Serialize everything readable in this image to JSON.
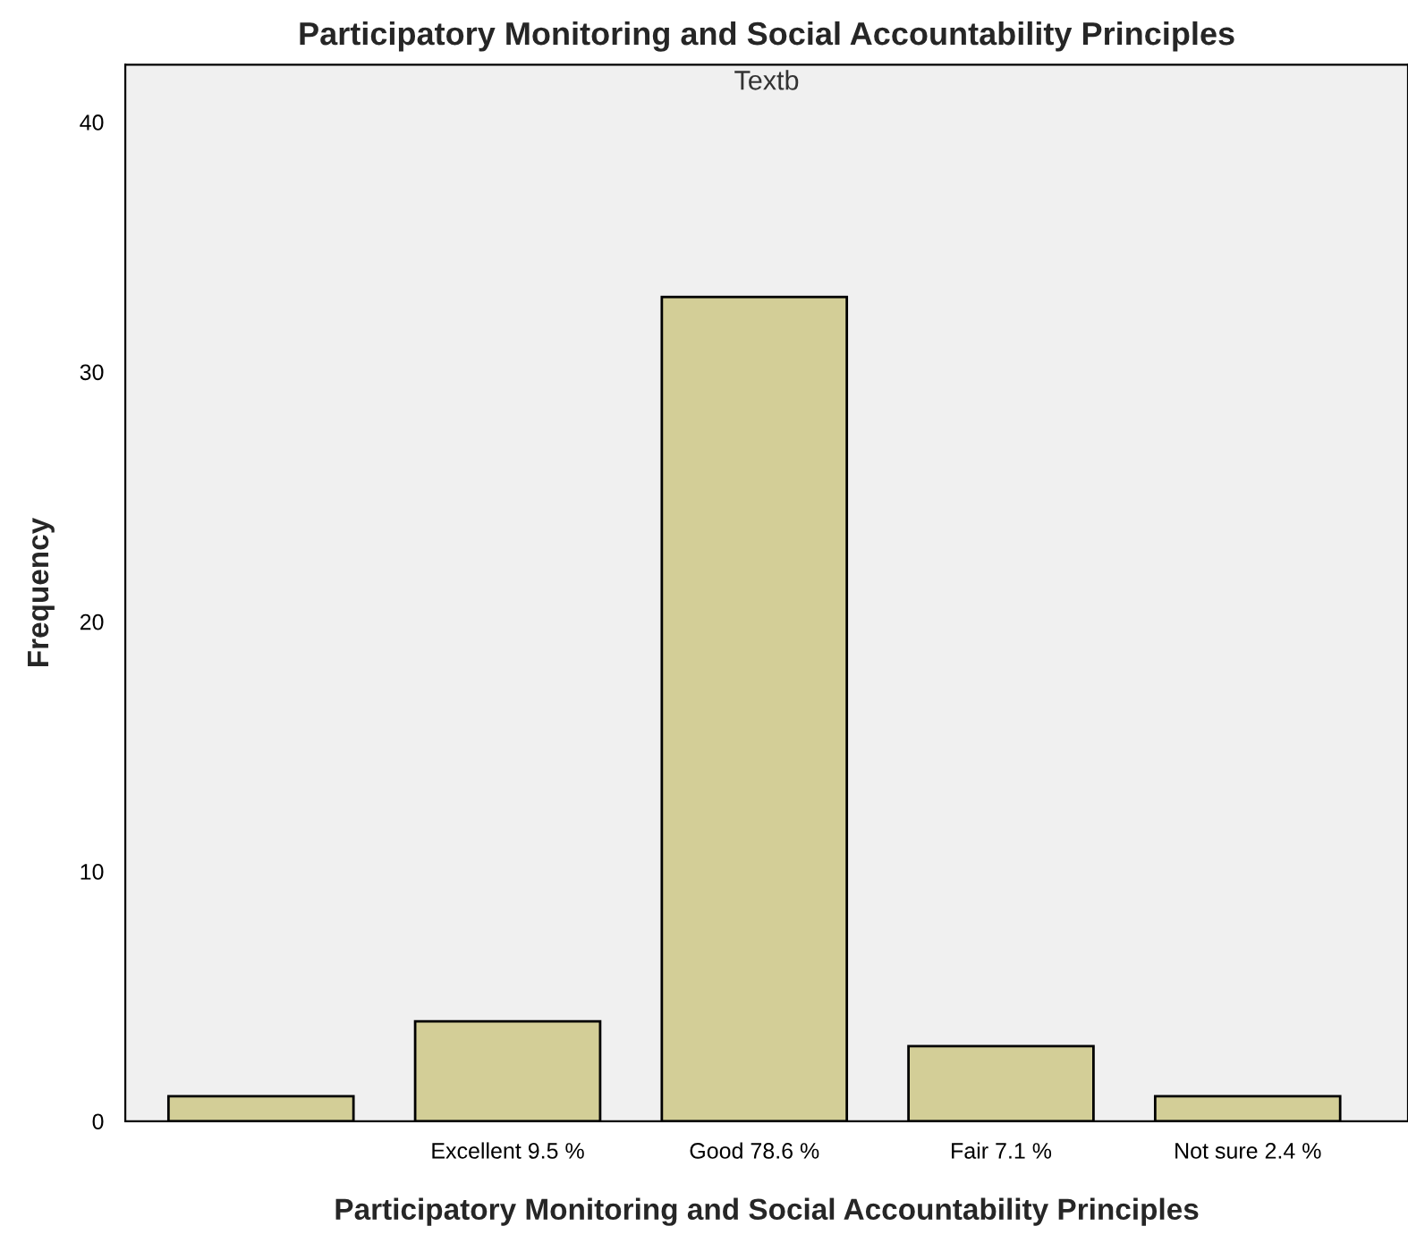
{
  "chart_data": {
    "type": "bar",
    "title": "Participatory Monitoring and Social Accountability Principles",
    "xlabel": "Participatory Monitoring and Social Accountability Principles",
    "ylabel": "Frequency",
    "annotations": [
      "Textb"
    ],
    "categories": [
      null,
      "Excellent 9.5 %",
      "Good 78.6 %",
      "Fair 7.1 %",
      "Not sure 2.4 %"
    ],
    "values": [
      1,
      4,
      33,
      3,
      1
    ],
    "color": "#d3ce97",
    "ylim": [
      0,
      42.3
    ],
    "yticks": [
      0,
      10,
      20,
      30,
      40
    ],
    "grid": false,
    "legend": false
  }
}
